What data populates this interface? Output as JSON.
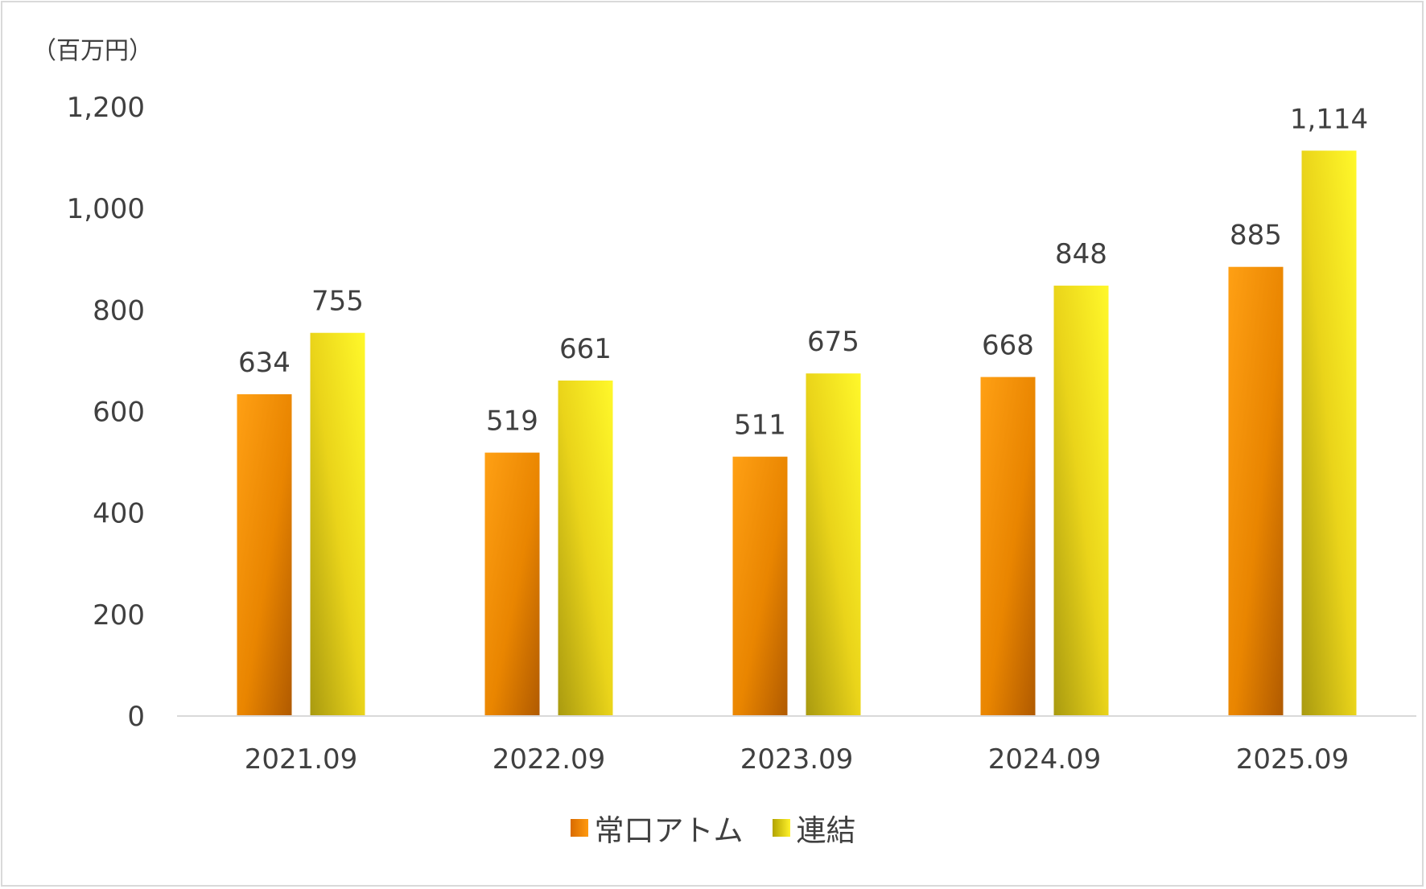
{
  "chart_data": {
    "type": "bar",
    "title": "",
    "unit_label": "（百万円）",
    "categories": [
      "2021.09",
      "2022.09",
      "2023.09",
      "2024.09",
      "2025.09"
    ],
    "series": [
      {
        "name": "常口アトム",
        "values": [
          634,
          519,
          511,
          668,
          885
        ],
        "color": "#f08c00"
      },
      {
        "name": "連結",
        "values": [
          755,
          661,
          675,
          848,
          1114
        ],
        "color": "#f0e020"
      }
    ],
    "value_labels_a": [
      "634",
      "519",
      "511",
      "668",
      "885"
    ],
    "value_labels_b": [
      "755",
      "661",
      "675",
      "848",
      "1,114"
    ],
    "ylim": [
      0,
      1200
    ],
    "yticks": [
      0,
      200,
      400,
      600,
      800,
      1000,
      1200
    ],
    "ytick_labels": [
      "0",
      "200",
      "400",
      "600",
      "800",
      "1,000",
      "1,200"
    ],
    "xlabel": "",
    "ylabel": "",
    "grid": false,
    "legend_position": "bottom"
  }
}
